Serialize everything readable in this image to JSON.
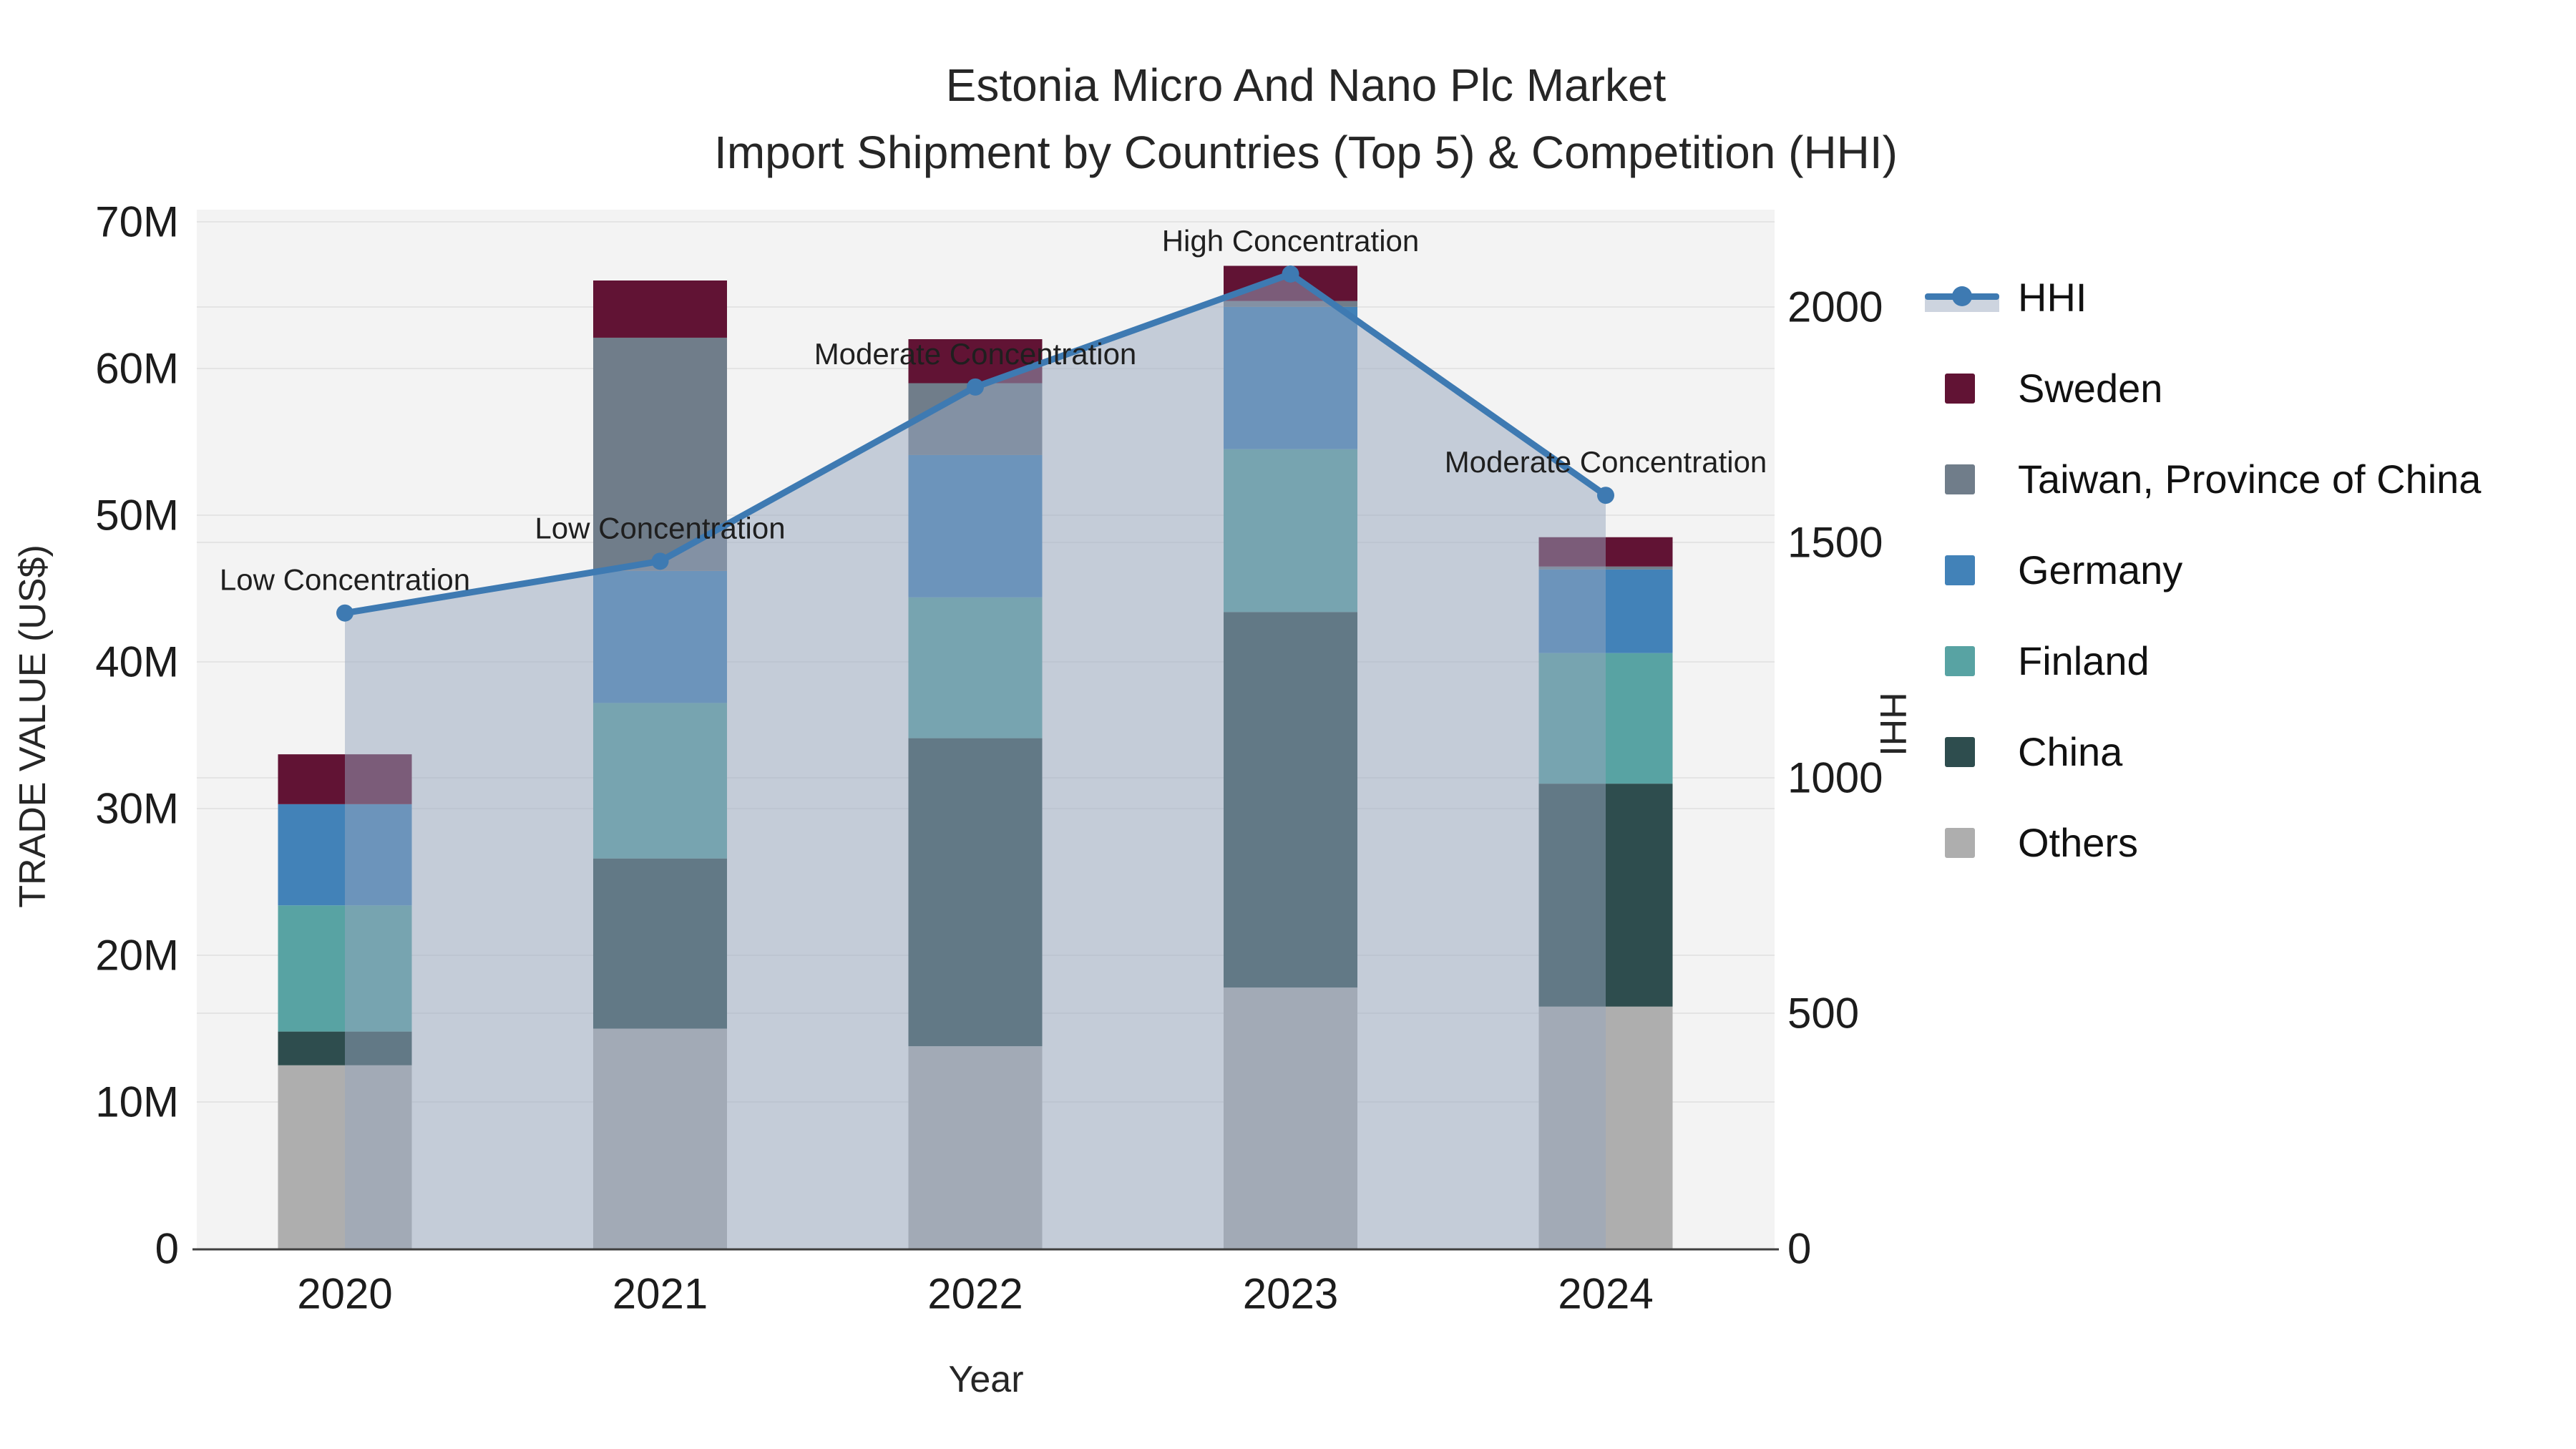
{
  "chart_data": {
    "type": "bar",
    "subtype": "stacked-bars-with-line-overlay",
    "title_line1": "Estonia Micro And Nano Plc Market",
    "title_line2": "Import Shipment by Countries (Top 5) & Competition (HHI)",
    "categories": [
      "2020",
      "2021",
      "2022",
      "2023",
      "2024"
    ],
    "xlabel": "Year",
    "left_axis": {
      "label": "TRADE VALUE (US$)",
      "tick_values": [
        0,
        10,
        20,
        30,
        40,
        50,
        60,
        70
      ],
      "tick_labels": [
        "0",
        "10M",
        "20M",
        "30M",
        "40M",
        "50M",
        "60M",
        "70M"
      ],
      "ylim": [
        0,
        70.8
      ],
      "unit": "million US$"
    },
    "right_axis": {
      "label": "HHI",
      "tick_values": [
        0,
        500,
        1000,
        1500,
        2000
      ],
      "tick_labels": [
        "0",
        "500",
        "1000",
        "1500",
        "2000"
      ],
      "ylim": [
        0,
        2205
      ]
    },
    "series": [
      {
        "name": "Sweden",
        "color": "#611334",
        "values": [
          3.4,
          3.9,
          3.0,
          2.4,
          2.0
        ]
      },
      {
        "name": "Taiwan, Province of China",
        "color": "#707d8a",
        "values": [
          0,
          15.9,
          4.9,
          0.4,
          0.2
        ]
      },
      {
        "name": "Germany",
        "color": "#4282b8",
        "values": [
          6.9,
          9.0,
          9.7,
          9.7,
          5.7
        ]
      },
      {
        "name": "Finland",
        "color": "#58a3a3",
        "values": [
          8.6,
          10.6,
          9.6,
          11.1,
          8.9
        ]
      },
      {
        "name": "China",
        "color": "#2e4d4e",
        "values": [
          2.3,
          11.6,
          21.0,
          25.6,
          15.2
        ]
      },
      {
        "name": "Others",
        "color": "#aeaeae",
        "values": [
          12.5,
          15.0,
          13.8,
          17.8,
          16.5
        ]
      }
    ],
    "stack_order_bottom_to_top": [
      "Others",
      "China",
      "Finland",
      "Germany",
      "Taiwan, Province of China",
      "Sweden"
    ],
    "line_series": {
      "name": "HHI",
      "color": "#3e7ab2",
      "area_fill_color": "#96a5be",
      "area_fill_opacity": 0.5,
      "values": [
        1350,
        1460,
        1830,
        2070,
        1600
      ]
    },
    "annotations": [
      {
        "category": "2020",
        "text": "Low Concentration"
      },
      {
        "category": "2021",
        "text": "Low Concentration"
      },
      {
        "category": "2022",
        "text": "Moderate Concentration"
      },
      {
        "category": "2023",
        "text": "High Concentration"
      },
      {
        "category": "2024",
        "text": "Moderate Concentration"
      }
    ],
    "legend": [
      "HHI",
      "Sweden",
      "Taiwan, Province of China",
      "Germany",
      "Finland",
      "China",
      "Others"
    ],
    "colors": {
      "plot_background": "#f3f3f3",
      "grid": "#e4e4e4",
      "axis_line": "#3f3f3f",
      "text": "#262626"
    }
  }
}
